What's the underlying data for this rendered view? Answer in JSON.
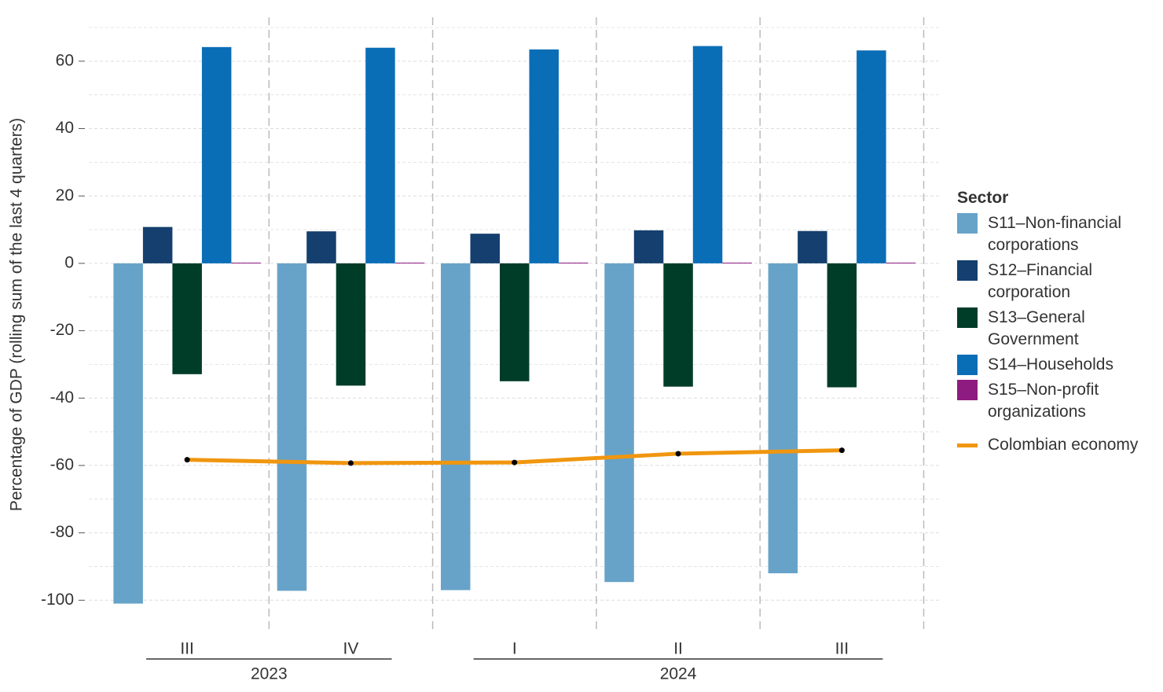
{
  "chart_data": {
    "type": "bar",
    "y_label": "Percentage of GDP (rolling sum of the last 4 quarters)",
    "categories": [
      "III",
      "IV",
      "I",
      "II",
      "III"
    ],
    "x_groups": [
      {
        "label": "2023",
        "count": 2
      },
      {
        "label": "2024",
        "count": 3
      }
    ],
    "legend_title": "Sector",
    "legend_position": "right",
    "series": [
      {
        "name": "S11–Non-financial corporations",
        "color": "#67a3c9",
        "values": [
          -101,
          -97.2,
          -97,
          -94.6,
          -92
        ]
      },
      {
        "name": "S12–Financial corporation",
        "color": "#143f6e",
        "values": [
          10.8,
          9.5,
          8.8,
          9.8,
          9.6
        ]
      },
      {
        "name": "S13–General Government",
        "color": "#003d29",
        "values": [
          -32.9,
          -36.3,
          -35,
          -36.6,
          -36.8
        ]
      },
      {
        "name": "S14–Households",
        "color": "#0a6eb7",
        "values": [
          64.2,
          64,
          63.5,
          64.5,
          63.2
        ]
      },
      {
        "name": "S15–Non-profit organizations",
        "color": "#8e1b7f",
        "values": [
          0.2,
          0.2,
          0.2,
          0.2,
          0.2
        ]
      },
      {
        "name": "Colombian economy",
        "type": "line",
        "color": "#f0960f",
        "values": [
          -58.3,
          -59.3,
          -59.1,
          -56.5,
          -55.5
        ]
      }
    ],
    "ylim": [
      -106,
      70
    ],
    "yticks": [
      -100,
      -80,
      -60,
      -40,
      -20,
      0,
      20,
      40,
      60
    ],
    "grid": true
  }
}
